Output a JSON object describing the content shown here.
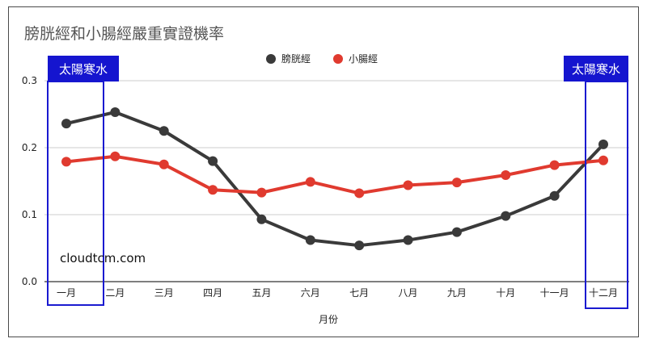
{
  "chart_data": {
    "type": "line",
    "title": "膀胱經和小腸經嚴重實證機率",
    "xlabel": "月份",
    "ylabel": "",
    "categories": [
      "一月",
      "二月",
      "三月",
      "四月",
      "五月",
      "六月",
      "七月",
      "八月",
      "九月",
      "十月",
      "十一月",
      "十二月"
    ],
    "ylim": [
      0,
      0.3
    ],
    "yticks": [
      "0.0",
      "0.1",
      "0.2",
      "0.3"
    ],
    "grid": true,
    "legend_position": "top",
    "series": [
      {
        "name": "膀胱經",
        "color": "#3a3a3a",
        "values": [
          0.236,
          0.253,
          0.225,
          0.18,
          0.093,
          0.062,
          0.054,
          0.062,
          0.074,
          0.098,
          0.128,
          0.205
        ]
      },
      {
        "name": "小腸經",
        "color": "#e03a2f",
        "values": [
          0.179,
          0.187,
          0.175,
          0.137,
          0.133,
          0.149,
          0.132,
          0.144,
          0.148,
          0.159,
          0.174,
          0.181
        ]
      }
    ],
    "annotations": [
      {
        "label": "太陽寒水",
        "month": "一月"
      },
      {
        "label": "太陽寒水",
        "month": "十二月"
      }
    ],
    "watermark": "cloudtcm.com"
  }
}
